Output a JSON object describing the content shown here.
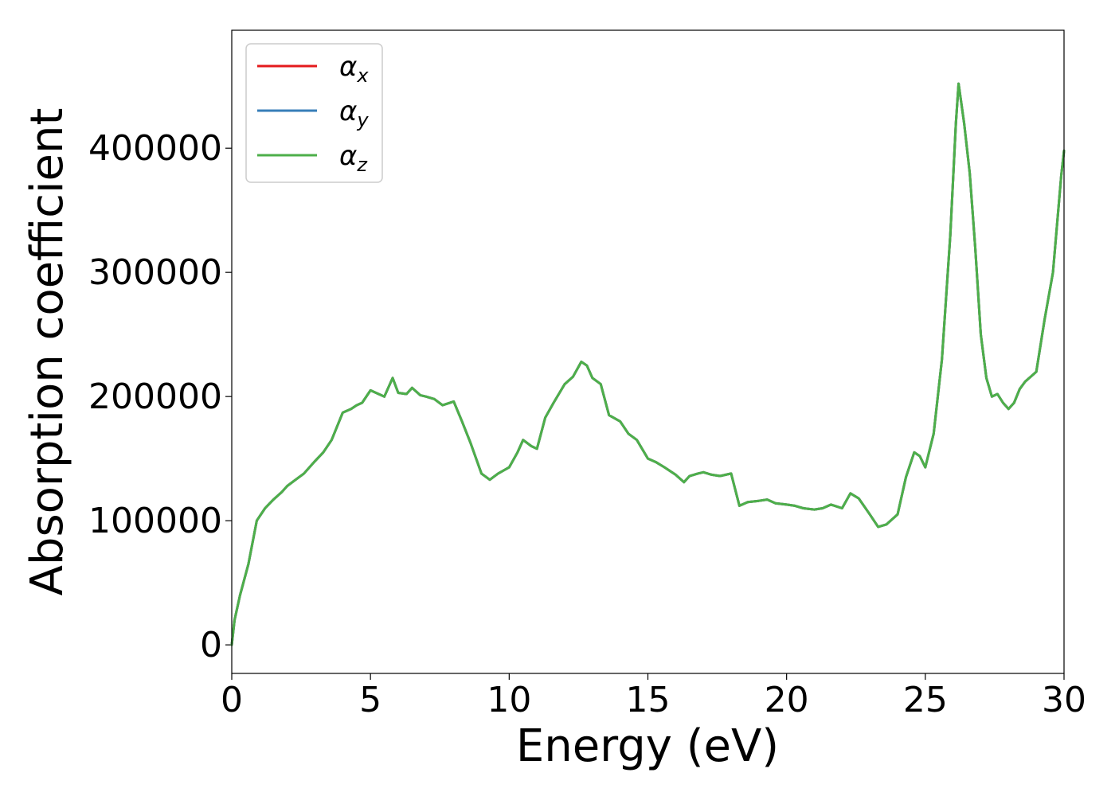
{
  "chart_data": {
    "type": "line",
    "title": "",
    "xlabel": "Energy (eV)",
    "ylabel": "Absorption coefficient",
    "xlim": [
      0,
      30
    ],
    "ylim": [
      -23000,
      495000
    ],
    "xticks": [
      0,
      5,
      10,
      15,
      20,
      25,
      30
    ],
    "xtick_labels": [
      "0",
      "5",
      "10",
      "15",
      "20",
      "25",
      "30"
    ],
    "yticks": [
      0,
      100000,
      200000,
      300000,
      400000
    ],
    "ytick_labels": [
      "0",
      "100000",
      "200000",
      "300000",
      "400000"
    ],
    "grid": false,
    "legend_position": "top-left",
    "x": [
      0,
      0.1,
      0.3,
      0.6,
      0.9,
      1.2,
      1.5,
      1.8,
      2.0,
      2.3,
      2.6,
      3.0,
      3.3,
      3.6,
      4.0,
      4.3,
      4.5,
      4.7,
      5.0,
      5.2,
      5.5,
      5.8,
      6.0,
      6.3,
      6.5,
      6.8,
      7.0,
      7.3,
      7.6,
      8.0,
      8.3,
      8.6,
      9.0,
      9.3,
      9.6,
      10.0,
      10.3,
      10.5,
      10.8,
      11.0,
      11.3,
      11.6,
      12.0,
      12.3,
      12.6,
      12.8,
      13.0,
      13.3,
      13.6,
      14.0,
      14.3,
      14.6,
      15.0,
      15.3,
      15.6,
      16.0,
      16.3,
      16.5,
      16.8,
      17.0,
      17.3,
      17.6,
      18.0,
      18.3,
      18.6,
      19.0,
      19.3,
      19.6,
      20.0,
      20.3,
      20.6,
      21.0,
      21.3,
      21.6,
      22.0,
      22.3,
      22.6,
      23.0,
      23.3,
      23.6,
      24.0,
      24.3,
      24.6,
      24.8,
      25.0,
      25.3,
      25.6,
      25.9,
      26.1,
      26.2,
      26.4,
      26.6,
      26.8,
      27.0,
      27.2,
      27.4,
      27.6,
      27.8,
      28.0,
      28.2,
      28.4,
      28.6,
      28.8,
      29.0,
      29.3,
      29.6,
      29.9,
      30.0
    ],
    "series": [
      {
        "name": "αx",
        "color": "#e41a1c"
      },
      {
        "name": "αy",
        "color": "#377eb8"
      },
      {
        "name": "αz",
        "color": "#4daf4a"
      }
    ],
    "y": [
      0,
      20000,
      40000,
      65000,
      100000,
      110000,
      117000,
      123000,
      128000,
      133000,
      138000,
      148000,
      155000,
      165000,
      187000,
      190000,
      193000,
      195000,
      205000,
      203000,
      200000,
      215000,
      203000,
      202000,
      207000,
      201000,
      200000,
      198000,
      193000,
      196000,
      180000,
      163000,
      138000,
      133000,
      138000,
      143000,
      155000,
      165000,
      160000,
      158000,
      183000,
      195000,
      210000,
      216000,
      228000,
      225000,
      215000,
      210000,
      185000,
      180000,
      170000,
      165000,
      150000,
      147000,
      143000,
      137000,
      131000,
      136000,
      138000,
      139000,
      137000,
      136000,
      138000,
      112000,
      115000,
      116000,
      117000,
      114000,
      113000,
      112000,
      110000,
      109000,
      110000,
      113000,
      110000,
      122000,
      118000,
      105000,
      95000,
      97000,
      105000,
      135000,
      155000,
      152000,
      143000,
      170000,
      230000,
      330000,
      420000,
      452000,
      420000,
      380000,
      320000,
      250000,
      215000,
      200000,
      202000,
      195000,
      190000,
      195000,
      206000,
      212000,
      216000,
      220000,
      262000,
      300000,
      378000,
      398000
    ]
  },
  "legend": {
    "items": [
      {
        "symbol": "α",
        "sub": "x",
        "color": "#e41a1c"
      },
      {
        "symbol": "α",
        "sub": "y",
        "color": "#377eb8"
      },
      {
        "symbol": "α",
        "sub": "z",
        "color": "#4daf4a"
      }
    ]
  }
}
